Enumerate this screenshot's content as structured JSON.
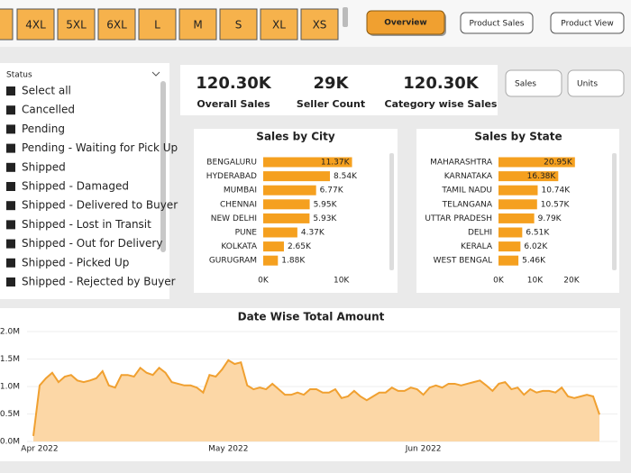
{
  "size_buttons": [
    "4XL",
    "5XL",
    "6XL",
    "L",
    "M",
    "S",
    "XL",
    "XS"
  ],
  "nav": [
    "Overview",
    "Product Sales",
    "Product View"
  ],
  "slicer": {
    "title": "Status",
    "items": [
      "Select all",
      "Cancelled",
      "Pending",
      "Pending - Waiting for Pick Up",
      "Shipped",
      "Shipped - Damaged",
      "Shipped - Delivered to Buyer",
      "Shipped - Lost in Transit",
      "Shipped - Out for Delivery",
      "Shipped - Picked Up",
      "Shipped - Rejected by Buyer"
    ]
  },
  "kpis": [
    {
      "value": "120.30K",
      "label": "Overall Sales"
    },
    {
      "value": "29K",
      "label": "Seller Count"
    },
    {
      "value": "120.30K",
      "label": "Category wise Sales"
    }
  ],
  "toggles": [
    "Sales",
    "Units"
  ],
  "chart_data": [
    {
      "type": "hbar",
      "title": "Sales by City",
      "categories": [
        "BENGALURU",
        "HYDERABAD",
        "MUMBAI",
        "CHENNAI",
        "NEW DELHI",
        "PUNE",
        "KOLKATA",
        "GURUGRAM"
      ],
      "values": [
        11370,
        8540,
        6770,
        5950,
        5930,
        4370,
        2650,
        1880
      ],
      "value_labels": [
        "11.37K",
        "8.54K",
        "6.77K",
        "5.95K",
        "5.93K",
        "4.37K",
        "2.65K",
        "1.88K"
      ],
      "color": "#f5a01f",
      "xlim": [
        0,
        12000
      ],
      "xticks": [
        {
          "value": 0,
          "label": "0K"
        },
        {
          "value": 10000,
          "label": "10K"
        }
      ]
    },
    {
      "type": "hbar",
      "title": "Sales by State",
      "categories": [
        "MAHARASHTRA",
        "KARNATAKA",
        "TAMIL NADU",
        "TELANGANA",
        "UTTAR PRADESH",
        "DELHI",
        "KERALA",
        "WEST BENGAL"
      ],
      "values": [
        20950,
        16380,
        10740,
        10570,
        9790,
        6510,
        6020,
        5460
      ],
      "value_labels": [
        "20.95K",
        "16.38K",
        "10.74K",
        "10.57K",
        "9.79K",
        "6.51K",
        "6.02K",
        "5.46K"
      ],
      "color": "#f5a01f",
      "xlim": [
        0,
        21000
      ],
      "xticks": [
        {
          "value": 0,
          "label": "0K"
        },
        {
          "value": 10000,
          "label": "10K"
        },
        {
          "value": 20000,
          "label": "20K"
        }
      ]
    },
    {
      "type": "area",
      "title": "Date Wise Total Amount",
      "categories": [
        null,
        "Apr 2022",
        null,
        null,
        null,
        null,
        null,
        null,
        null,
        null,
        null,
        null,
        null,
        null,
        null,
        null,
        null,
        null,
        null,
        null,
        null,
        null,
        null,
        null,
        null,
        null,
        null,
        null,
        null,
        null,
        null,
        "May 2022",
        null,
        null,
        null,
        null,
        null,
        null,
        null,
        null,
        null,
        null,
        null,
        null,
        null,
        null,
        null,
        null,
        null,
        null,
        null,
        null,
        null,
        null,
        null,
        null,
        null,
        null,
        null,
        null,
        null,
        null,
        "Jun 2022",
        null,
        null,
        null,
        null,
        null,
        null,
        null,
        null,
        null,
        null,
        null,
        null,
        null,
        null,
        null,
        null,
        null,
        null,
        null,
        null,
        null,
        null,
        null,
        null,
        null,
        null,
        null,
        null
      ],
      "values": [
        100000,
        1020000,
        1150000,
        1250000,
        1080000,
        1180000,
        1210000,
        1110000,
        1080000,
        1110000,
        1150000,
        1280000,
        1020000,
        980000,
        1210000,
        1210000,
        1180000,
        1340000,
        1250000,
        1210000,
        1340000,
        1250000,
        1080000,
        1050000,
        1020000,
        1020000,
        980000,
        890000,
        1210000,
        1180000,
        1310000,
        1480000,
        1410000,
        1440000,
        1020000,
        950000,
        980000,
        950000,
        1050000,
        950000,
        850000,
        850000,
        890000,
        850000,
        950000,
        950000,
        890000,
        890000,
        950000,
        790000,
        820000,
        920000,
        820000,
        750000,
        820000,
        890000,
        890000,
        980000,
        920000,
        920000,
        980000,
        950000,
        850000,
        980000,
        1020000,
        980000,
        1050000,
        1050000,
        1020000,
        1050000,
        1080000,
        1110000,
        1020000,
        920000,
        1050000,
        1080000,
        950000,
        980000,
        850000,
        950000,
        890000,
        920000,
        920000,
        890000,
        980000,
        820000,
        790000,
        820000,
        850000,
        820000,
        490000
      ],
      "color": "#f0a030",
      "fill": "#fcd7a6",
      "ylim": [
        0,
        2000000
      ],
      "yticks": [
        {
          "value": 0,
          "label": "0.0M"
        },
        {
          "value": 500000,
          "label": "0.5M"
        },
        {
          "value": 1000000,
          "label": "1.0M"
        },
        {
          "value": 1500000,
          "label": "1.5M"
        },
        {
          "value": 2000000,
          "label": "2.0M"
        }
      ]
    }
  ]
}
